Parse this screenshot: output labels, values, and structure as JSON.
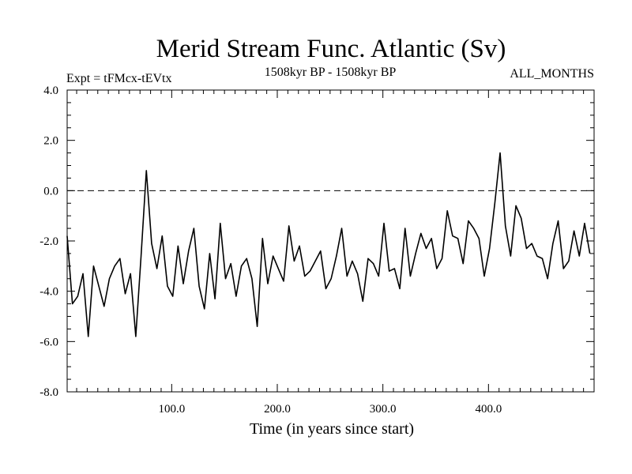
{
  "chart_data": {
    "type": "line",
    "title": "Merid Stream Func. Atlantic (Sv)",
    "subtitle_left": "Expt = tFMcx-tEVtx",
    "subtitle_center": "1508kyr BP - 1508kyr BP",
    "subtitle_right": "ALL_MONTHS",
    "xlabel": "Time (in years since start)",
    "ylabel": "",
    "xlim": [
      1,
      500
    ],
    "ylim": [
      -8.0,
      4.0
    ],
    "x_ticks": [
      100,
      200,
      300,
      400
    ],
    "x_tick_labels": [
      "100.0",
      "200.0",
      "300.0",
      "400.0"
    ],
    "y_ticks": [
      4.0,
      2.0,
      0.0,
      -2.0,
      -4.0,
      -6.0,
      -8.0
    ],
    "y_tick_labels": [
      "4.0",
      "2.0",
      "0.0",
      "-2.0",
      "-4.0",
      "-6.0",
      "-8.0"
    ],
    "reference_line": 0.0,
    "grid": false,
    "series": [
      {
        "name": "Merid Stream Func. Atlantic",
        "x_start": 1,
        "x_step": 5,
        "values": [
          -1.8,
          -4.5,
          -4.2,
          -3.3,
          -5.8,
          -3.0,
          -3.8,
          -4.6,
          -3.5,
          -3.0,
          -2.7,
          -4.1,
          -3.3,
          -5.8,
          -2.6,
          0.8,
          -2.1,
          -3.1,
          -1.8,
          -3.8,
          -4.2,
          -2.2,
          -3.7,
          -2.4,
          -1.5,
          -3.8,
          -4.7,
          -2.5,
          -4.3,
          -1.3,
          -3.5,
          -2.9,
          -4.2,
          -3.0,
          -2.7,
          -3.5,
          -5.4,
          -1.9,
          -3.7,
          -2.6,
          -3.1,
          -3.6,
          -1.4,
          -2.8,
          -2.2,
          -3.4,
          -3.2,
          -2.8,
          -2.4,
          -3.9,
          -3.5,
          -2.6,
          -1.5,
          -3.4,
          -2.8,
          -3.3,
          -4.4,
          -2.7,
          -2.9,
          -3.4,
          -1.3,
          -3.2,
          -3.1,
          -3.9,
          -1.5,
          -3.4,
          -2.5,
          -1.7,
          -2.3,
          -1.9,
          -3.1,
          -2.7,
          -0.8,
          -1.8,
          -1.9,
          -2.9,
          -1.2,
          -1.5,
          -1.9,
          -3.4,
          -2.3,
          -0.5,
          1.5,
          -1.4,
          -2.6,
          -0.6,
          -1.1,
          -2.3,
          -2.1,
          -2.6,
          -2.7,
          -3.5,
          -2.1,
          -1.2,
          -3.1,
          -2.8,
          -1.6,
          -2.6,
          -1.3,
          -2.5
        ]
      }
    ]
  }
}
